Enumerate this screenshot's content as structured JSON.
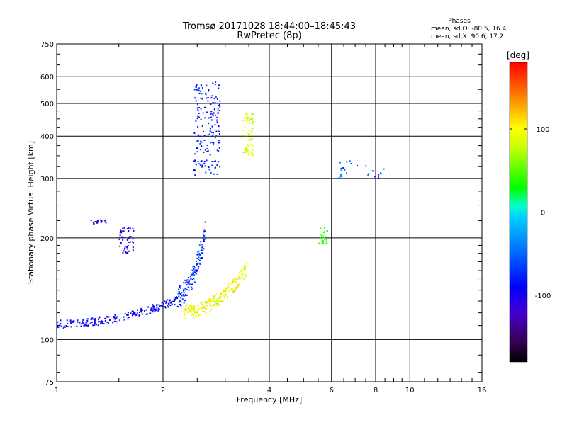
{
  "chart_data": {
    "type": "scatter",
    "title": "Tromsø 20171028 18:44:00–18:45:43",
    "subtitle": "RwPretec (8p)",
    "phases_header": "Phases",
    "phases_o": "mean, sd,O: -80.5, 16.4",
    "phases_x": "mean, sd,X:  90.6, 17.2",
    "xlabel": "Frequency [MHz]",
    "ylabel": "Stationary phase Virtual Height [km]",
    "xscale": "log",
    "yscale": "log",
    "xlim": [
      1,
      16
    ],
    "ylim": [
      75,
      750
    ],
    "x_ticks": [
      1,
      2,
      4,
      6,
      8,
      10,
      16
    ],
    "x_tick_labels": [
      "1",
      "2",
      "4",
      "6",
      "8",
      "10",
      "16"
    ],
    "y_ticks": [
      75,
      100,
      200,
      300,
      400,
      500,
      600,
      750
    ],
    "y_tick_labels": [
      "75",
      "100",
      "200",
      "300",
      "400",
      "500",
      "600",
      "750"
    ],
    "grid": true,
    "colorbar": {
      "label": "[deg]",
      "range": [
        -180,
        180
      ],
      "ticks": [
        100,
        0,
        -100
      ],
      "tick_labels": [
        "100",
        "0",
        "-100"
      ]
    },
    "clusters": [
      {
        "name": "O-mode low trace",
        "x_range": [
          1.0,
          2.2
        ],
        "y_range": [
          108,
          135
        ],
        "phase_deg": -90,
        "count": 220
      },
      {
        "name": "O-mode rise",
        "x_range": [
          2.2,
          2.65
        ],
        "y_range": [
          125,
          230
        ],
        "phase_deg": -70,
        "count": 130
      },
      {
        "name": "F2 O-mode column",
        "x_range": [
          2.45,
          2.9
        ],
        "y_range": [
          300,
          580
        ],
        "phase_deg": -80,
        "count": 170
      },
      {
        "name": "X-mode trace",
        "x_range": [
          2.3,
          3.45
        ],
        "y_range": [
          115,
          170
        ],
        "phase_deg": 95,
        "count": 200
      },
      {
        "name": "F2 X-mode column",
        "x_range": [
          3.35,
          3.6
        ],
        "y_range": [
          350,
          470
        ],
        "phase_deg": 85,
        "count": 70
      },
      {
        "name": "E-layer patch 1",
        "x_range": [
          1.25,
          1.38
        ],
        "y_range": [
          220,
          226
        ],
        "phase_deg": -120,
        "count": 20
      },
      {
        "name": "E-layer patch 2",
        "x_range": [
          1.5,
          1.65
        ],
        "y_range": [
          180,
          215
        ],
        "phase_deg": -110,
        "count": 50
      },
      {
        "name": "Green patch",
        "x_range": [
          5.5,
          5.85
        ],
        "y_range": [
          188,
          215
        ],
        "phase_deg": 40,
        "count": 30
      },
      {
        "name": "High-frequency echoes",
        "x_range": [
          6.3,
          8.5
        ],
        "y_range": [
          300,
          340
        ],
        "phase_deg": -60,
        "count": 25
      }
    ]
  }
}
